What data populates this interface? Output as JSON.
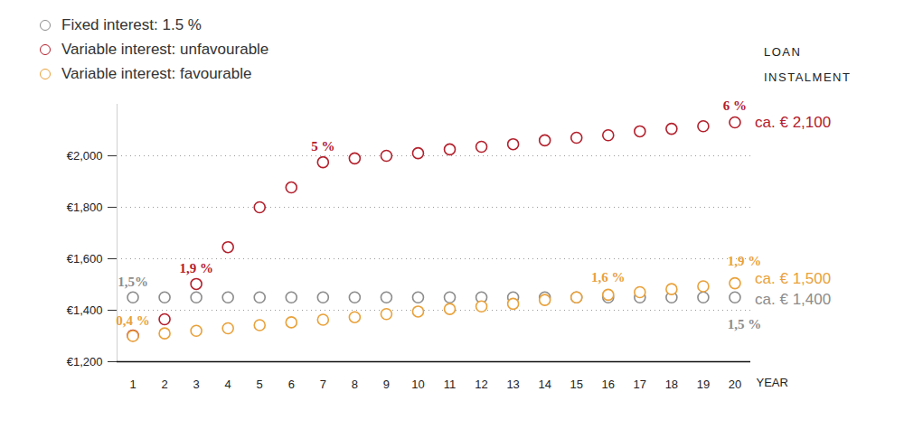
{
  "chart_data": {
    "type": "scatter",
    "ylabel": "LOAN INSTALMENT",
    "xlabel": "YEAR",
    "x": [
      1,
      2,
      3,
      4,
      5,
      6,
      7,
      8,
      9,
      10,
      11,
      12,
      13,
      14,
      15,
      16,
      17,
      18,
      19,
      20
    ],
    "xlim": [
      0.5,
      20.5
    ],
    "xticks": [
      1,
      2,
      3,
      4,
      5,
      6,
      7,
      8,
      9,
      10,
      11,
      12,
      13,
      14,
      15,
      16,
      17,
      18,
      19,
      20
    ],
    "ylim": [
      1200,
      2200
    ],
    "yticks": [
      {
        "value": 1200,
        "label": "€1,200"
      },
      {
        "value": 1400,
        "label": "€1,400"
      },
      {
        "value": 1600,
        "label": "€1,600"
      },
      {
        "value": 1800,
        "label": "€1,800"
      },
      {
        "value": 2000,
        "label": "€2,000"
      }
    ],
    "grid": true,
    "legend": "top-left",
    "marker": "circle",
    "series": [
      {
        "name": "Fixed interest: 1.5 %",
        "color": "#8c8c8c",
        "values": [
          1450,
          1450,
          1450,
          1450,
          1450,
          1450,
          1450,
          1450,
          1450,
          1450,
          1450,
          1450,
          1450,
          1450,
          1450,
          1450,
          1450,
          1450,
          1450,
          1450
        ]
      },
      {
        "name": "Variable interest: unfavourable",
        "color": "#b3202c",
        "values": [
          1302,
          1365,
          1502,
          1645,
          1800,
          1877,
          1975,
          1990,
          2000,
          2010,
          2025,
          2035,
          2045,
          2060,
          2070,
          2080,
          2095,
          2105,
          2115,
          2130
        ]
      },
      {
        "name": "Variable interest: favourable",
        "color": "#e9a13a",
        "values": [
          1300,
          1310,
          1320,
          1330,
          1342,
          1353,
          1363,
          1373,
          1385,
          1395,
          1405,
          1415,
          1425,
          1440,
          1450,
          1460,
          1470,
          1482,
          1493,
          1505
        ]
      }
    ],
    "annotations": [
      {
        "text": "1,5%",
        "x": 1,
        "y": 1509,
        "color": "#8c8c8c"
      },
      {
        "text": "0,4 %",
        "x": 1,
        "y": 1358,
        "color": "#e9a13a"
      },
      {
        "text": "1,9 %",
        "x": 3,
        "y": 1561,
        "color": "#b3202c"
      },
      {
        "text": "5 %",
        "x": 7,
        "y": 2035,
        "color": "#b3202c"
      },
      {
        "text": "6 %",
        "x": 20,
        "y": 2193,
        "color": "#b3202c"
      },
      {
        "text": "1,6 %",
        "x": 16,
        "y": 1526,
        "color": "#e9a13a"
      },
      {
        "text": "1,9 %",
        "x": 20.3,
        "y": 1589,
        "color": "#e9a13a"
      },
      {
        "text": "1,5 %",
        "x": 20.3,
        "y": 1344,
        "color": "#8c8c8c"
      },
      {
        "text": "ca. € 2,100",
        "x": 20.63,
        "y": 2130,
        "color": "#b3202c"
      },
      {
        "text": "ca. € 1,500",
        "x": 20.63,
        "y": 1523,
        "color": "#e9a13a"
      },
      {
        "text": "ca. € 1,400",
        "x": 20.63,
        "y": 1442,
        "color": "#8c8c8c"
      }
    ]
  }
}
